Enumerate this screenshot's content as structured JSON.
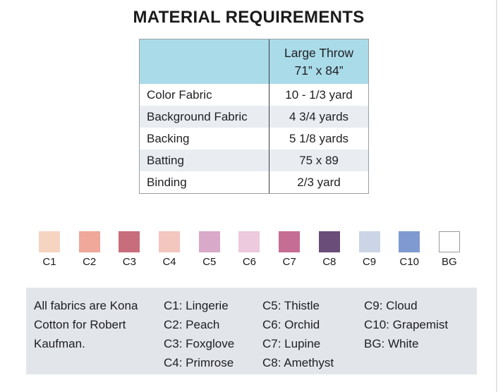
{
  "title": "MATERIAL REQUIREMENTS",
  "table": {
    "header": {
      "size_label_line1": "Large Throw",
      "size_label_line2": "71” x 84”"
    },
    "rows": [
      {
        "label": "Color Fabric",
        "value": "10 - 1/3 yard"
      },
      {
        "label": "Background Fabric",
        "value": "4 3/4 yards"
      },
      {
        "label": "Backing",
        "value": "5 1/8 yards"
      },
      {
        "label": "Batting",
        "value": "75 x 89"
      },
      {
        "label": "Binding",
        "value": "2/3 yard"
      }
    ],
    "colors": {
      "header_bg": "#aadbe9",
      "alt_row_bg": "#e9edf2",
      "border": "#9aa0a6"
    }
  },
  "swatches": [
    {
      "code": "C1",
      "color": "#f6d4c2"
    },
    {
      "code": "C2",
      "color": "#efa89a"
    },
    {
      "code": "C3",
      "color": "#c76d7c"
    },
    {
      "code": "C4",
      "color": "#f3c6be"
    },
    {
      "code": "C5",
      "color": "#d8a9c9"
    },
    {
      "code": "C6",
      "color": "#edcadd"
    },
    {
      "code": "C7",
      "color": "#c56d95"
    },
    {
      "code": "C8",
      "color": "#6b4d79"
    },
    {
      "code": "C9",
      "color": "#cbd5e6"
    },
    {
      "code": "C10",
      "color": "#7f9ad0"
    },
    {
      "code": "BG",
      "color": "#ffffff"
    }
  ],
  "legend": {
    "bg": "#e2e5ea",
    "note_lines": [
      "All fabrics are Kona",
      "Cotton for Robert",
      "Kaufman."
    ],
    "columns": [
      [
        "C1: Lingerie",
        "C2: Peach",
        "C3: Foxglove",
        "C4: Primrose"
      ],
      [
        "C5: Thistle",
        "C6: Orchid",
        "C7: Lupine",
        "C8: Amethyst"
      ],
      [
        "C9: Cloud",
        "C10: Grapemist",
        "BG: White"
      ]
    ]
  }
}
